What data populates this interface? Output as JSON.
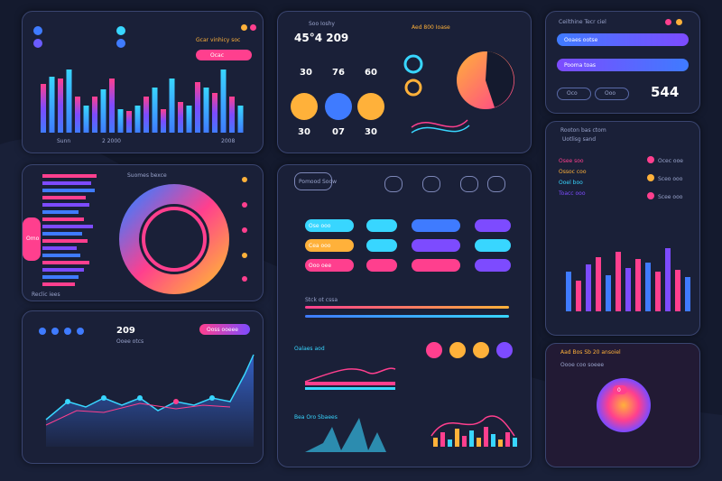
{
  "colors": {
    "bg": "#141a2e",
    "panel": "#1a2038",
    "accent_pink": "#ff3f8e",
    "accent_blue": "#3f7bff",
    "accent_cyan": "#38d6ff",
    "accent_orange": "#ffb13a",
    "accent_purple": "#7d4bff"
  },
  "p1": {
    "title": "Gcar vinhicy soc",
    "button": "Ocac",
    "axis": "Sunn",
    "stat_a": "2 2000",
    "stat_b": "2008"
  },
  "p2": {
    "big": "45°4 209",
    "sub": "Soo Ioshy",
    "stats_top": [
      "30",
      "76",
      "60"
    ],
    "stats_bottom": [
      "30",
      "07",
      "30"
    ],
    "icons": [
      "person-icon",
      "bag-icon",
      "briefcase-icon"
    ],
    "right_title": "Aed 800 Ioase",
    "pie_label": "0.0",
    "pie_label2": "0.0"
  },
  "p3": {
    "title": "Ceilthine Tecr ciel",
    "value": "544",
    "row1": "Ooaes ootse",
    "row2": "Pooma toas",
    "b1": "Oco",
    "b2": "Ooo"
  },
  "p4": {
    "title": "Suomes bexce",
    "footer": "Reclic iees",
    "side": "Omo"
  },
  "p5": {
    "title": "Pomood Soow",
    "tab_labels": [
      "Sob",
      "Cob",
      "Soo",
      "Sec"
    ],
    "rows": [
      "Ose ooo",
      "Cea ooo",
      "Ooo oee"
    ],
    "footer_label": "Stck ot cssa",
    "mid_title": "Oalaes aod",
    "bot_title": "Bea Oro Sbaees"
  },
  "p6": {
    "title": "Rooton bas ctom",
    "sub": "Uotlisg sand",
    "list": [
      "Osee soo",
      "Ossoc coo",
      "Ooel boo",
      "Toacc ooo"
    ],
    "right": [
      "Ocec ooe",
      "Sceo ooo",
      "Scee ooo"
    ]
  },
  "p7": {
    "value": "209",
    "label": "Ooee otcs",
    "button": "Ooss ooeee"
  },
  "p8": {
    "title": "Aad Bos Sb 20 ansoiel",
    "sub": "Oooe coo soeee",
    "badge": "0"
  }
}
